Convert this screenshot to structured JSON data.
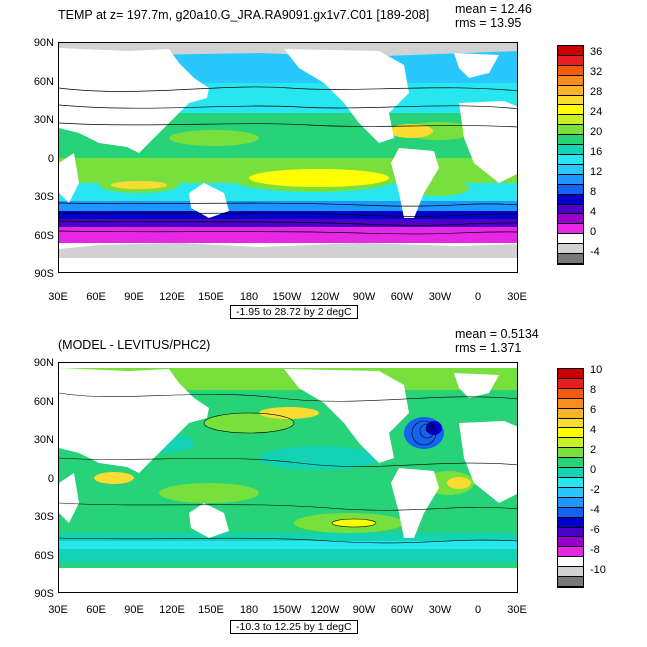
{
  "panel1": {
    "title": "TEMP at z= 197.7m, g20a10.G_JRA.RA9091.gx1v7.C01 [189-208]",
    "mean": "mean = 12.46",
    "rms": "rms = 13.95",
    "range": "-1.95 to 28.72 by 2 degC",
    "lat_labels": [
      "90N",
      "60N",
      "30N",
      "0",
      "30S",
      "60S",
      "90S"
    ],
    "lon_labels": [
      "30E",
      "60E",
      "90E",
      "120E",
      "150E",
      "180",
      "150W",
      "120W",
      "90W",
      "60W",
      "30W",
      "0",
      "30E"
    ],
    "cbar_labels": [
      "36",
      "32",
      "28",
      "24",
      "20",
      "16",
      "12",
      "8",
      "4",
      "0",
      "-4"
    ],
    "cbar_colors": [
      "#c80000",
      "#e81e1e",
      "#f55a0f",
      "#f88c1e",
      "#fab428",
      "#fadc32",
      "#ffff00",
      "#c8f028",
      "#78e03c",
      "#28d278",
      "#14d2b4",
      "#28e6f0",
      "#28c8ff",
      "#1e96ff",
      "#1464f0",
      "#0000c8",
      "#4b00c8",
      "#9600c8",
      "#e628e6",
      "#ffffff",
      "#d2d2d2",
      "#787878"
    ]
  },
  "panel2": {
    "title": "(MODEL - LEVITUS/PHC2)",
    "mean": "mean = 0.5134",
    "rms": "rms = 1.371",
    "range": "-10.3 to 12.25 by 1 degC",
    "lat_labels": [
      "90N",
      "60N",
      "30N",
      "0",
      "30S",
      "60S",
      "90S"
    ],
    "lon_labels": [
      "30E",
      "60E",
      "90E",
      "120E",
      "150E",
      "180",
      "150W",
      "120W",
      "90W",
      "60W",
      "30W",
      "0",
      "30E"
    ],
    "cbar_labels": [
      "10",
      "8",
      "6",
      "4",
      "2",
      "0",
      "-2",
      "-4",
      "-6",
      "-8",
      "-10"
    ],
    "cbar_colors": [
      "#c80000",
      "#e81e1e",
      "#f55a0f",
      "#f88c1e",
      "#fab428",
      "#fadc32",
      "#ffff00",
      "#c8f028",
      "#78e03c",
      "#28d278",
      "#14d2b4",
      "#28e6f0",
      "#28c8ff",
      "#1e96ff",
      "#1464f0",
      "#0000c8",
      "#4b00c8",
      "#9600c8",
      "#e628e6",
      "#ffffff",
      "#d2d2d2",
      "#787878"
    ]
  }
}
